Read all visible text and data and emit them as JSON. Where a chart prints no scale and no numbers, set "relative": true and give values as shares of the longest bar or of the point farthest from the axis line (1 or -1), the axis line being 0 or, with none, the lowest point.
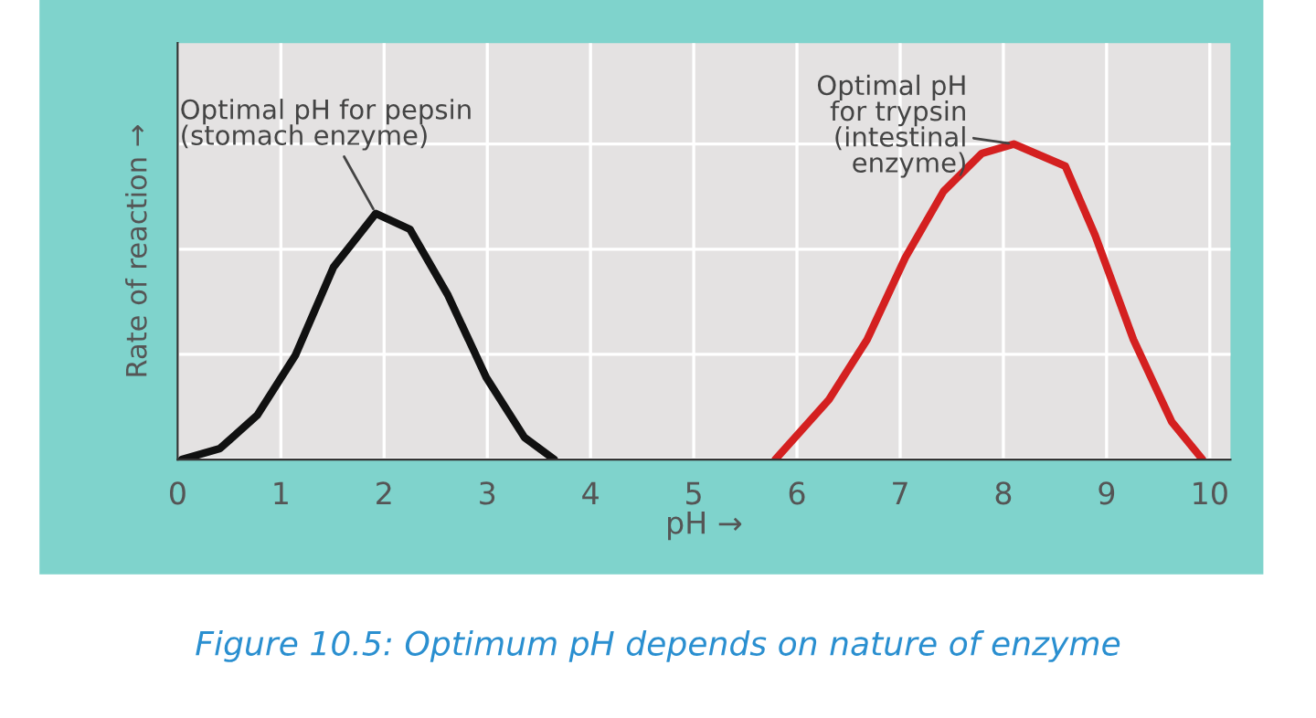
{
  "chart_data": {
    "type": "line",
    "relative": true,
    "xlabel": "pH →",
    "ylabel": "Rate of reaction →",
    "xlim": [
      0,
      10.2
    ],
    "xticks": [
      0,
      1,
      2,
      3,
      4,
      5,
      6,
      7,
      8,
      9,
      10
    ],
    "grid": true,
    "line_style": "solid",
    "marker": "none",
    "series": [
      {
        "color": "#111111",
        "x": [
          0.04,
          0.41,
          0.77,
          1.14,
          1.51,
          1.92,
          2.25,
          2.62,
          2.99,
          3.36,
          3.65
        ],
        "values": [
          0,
          0.035,
          0.14,
          0.33,
          0.61,
          0.78,
          0.73,
          0.52,
          0.26,
          0.07,
          0
        ]
      },
      {
        "color": "#d42020",
        "x": [
          5.79,
          6.31,
          6.68,
          7.05,
          7.42,
          7.79,
          8.1,
          8.6,
          8.89,
          9.26,
          9.63,
          9.93
        ],
        "values": [
          0,
          0.19,
          0.38,
          0.64,
          0.85,
          0.97,
          1,
          0.93,
          0.71,
          0.38,
          0.12,
          0
        ]
      }
    ],
    "annotations": [
      {
        "text": "Optimal pH for pepsin\n(stomach enzyme)",
        "x": 1.92,
        "y": 0.78
      },
      {
        "text": "Optimal pH\nfor trypsin\n(intestinal\nenzyme)",
        "x": 8.1,
        "y": 1
      },
      "Figure 10.5: Optimum pH depends on nature of enzyme"
    ]
  }
}
